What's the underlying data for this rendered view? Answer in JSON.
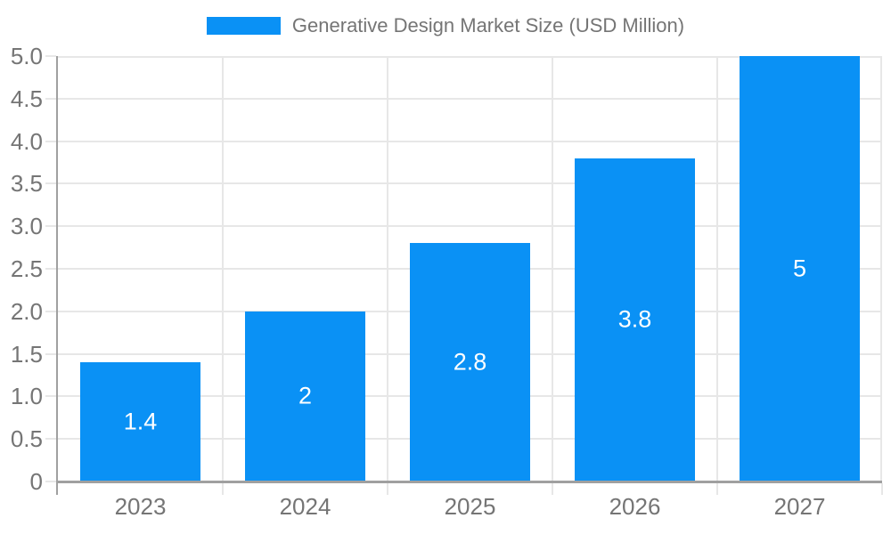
{
  "chart_data": {
    "type": "bar",
    "title": "Generative Design Market Size (USD Million)",
    "legend": {
      "label": "Generative Design Market Size (USD Million)",
      "position": "top-center"
    },
    "categories": [
      "2023",
      "2024",
      "2025",
      "2026",
      "2027"
    ],
    "series": [
      {
        "name": "Generative Design Market Size (USD Million)",
        "values": [
          1.4,
          2,
          2.8,
          3.8,
          5
        ],
        "value_labels": [
          "1.4",
          "2",
          "2.8",
          "3.8",
          "5"
        ]
      }
    ],
    "xlabel": "",
    "ylabel": "",
    "ylim": [
      0,
      5
    ],
    "ytick_step": 0.5,
    "ytick_labels": [
      "0",
      "0.5",
      "1.0",
      "1.5",
      "2.0",
      "2.5",
      "3.0",
      "3.5",
      "4.0",
      "4.5",
      "5.0"
    ],
    "grid": true,
    "value_labels_position": "inside-center",
    "colors": {
      "bar": "#0a91f5",
      "grid": "#e7e7e7",
      "axis": "#a0a0a0",
      "text": "#757575",
      "value_label": "#ffffff",
      "background": "#ffffff"
    }
  }
}
